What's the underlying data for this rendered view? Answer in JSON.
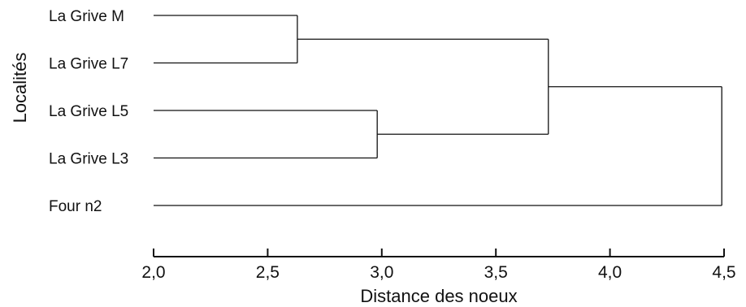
{
  "chart_data": {
    "type": "dendrogram",
    "xlabel": "Distance des noeux",
    "ylabel": "Localités",
    "xlim": [
      2.0,
      4.5
    ],
    "xticks": [
      2.0,
      2.5,
      3.0,
      3.5,
      4.0,
      4.5
    ],
    "xtick_labels": [
      "2,0",
      "2,5",
      "3,0",
      "3,5",
      "4,0",
      "4,5"
    ],
    "leaves": [
      "La Grive M",
      "La Grive L7",
      "La Grive L5",
      "La Grive L3",
      "Four n2"
    ],
    "merges": [
      {
        "a": "leaf:0",
        "b": "leaf:1",
        "distance": 2.63
      },
      {
        "a": "leaf:2",
        "b": "leaf:3",
        "distance": 2.98
      },
      {
        "a": "node:0",
        "b": "node:1",
        "distance": 3.73
      },
      {
        "a": "node:2",
        "b": "leaf:4",
        "distance": 4.49
      }
    ]
  }
}
